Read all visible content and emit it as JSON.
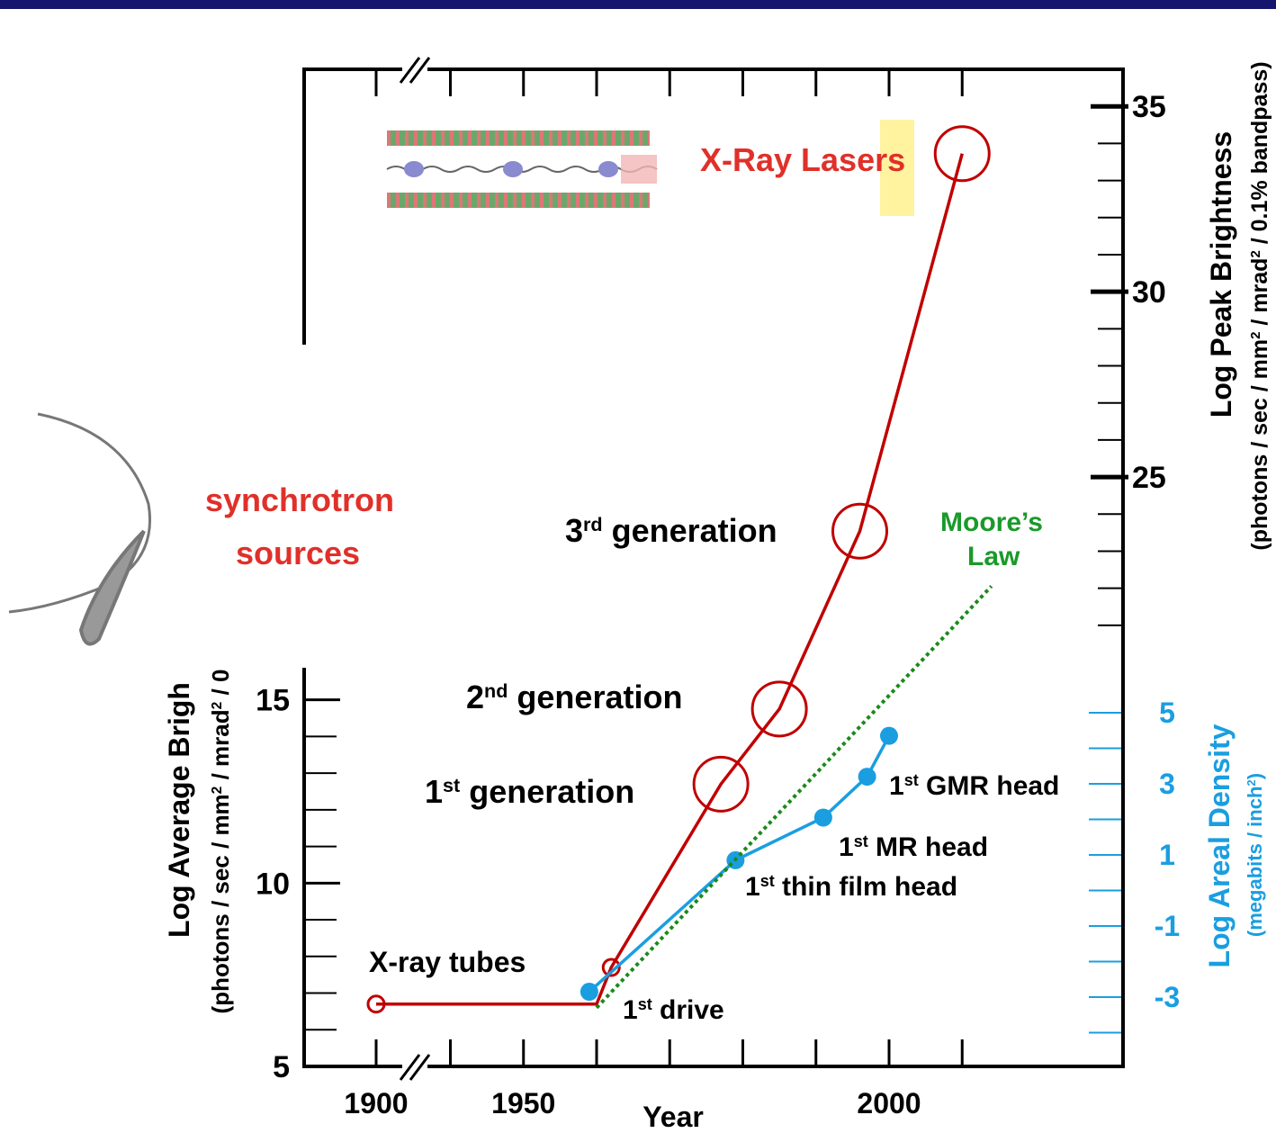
{
  "chart_data": {
    "type": "line",
    "x_label": "Year",
    "xlim": [
      1920,
      2032
    ],
    "xticks": [
      1900,
      1950,
      2000
    ],
    "xminorticks": [
      1940,
      1960,
      1970,
      1980,
      1990,
      2010
    ],
    "y_label": "Log Average Brigh",
    "y_sublabel": [
      "(photons / sec / mm",
      "2",
      " / mrad",
      "2",
      " / 0"
    ],
    "ylim": [
      5,
      32.2
    ],
    "yticks": [
      5,
      10,
      15
    ],
    "yminorticks": [
      6,
      7,
      8,
      9,
      11,
      12,
      13,
      14
    ],
    "y2_label": "Log Peak Brightness",
    "y2_sublabel": [
      "(photons / sec / mm",
      "2",
      " / mrad",
      "2",
      " / 0.1% bandpass)"
    ],
    "y2lim": [
      9.1,
      36
    ],
    "y2ticks": [
      25,
      30,
      35
    ],
    "y2minorticks": [
      21,
      22,
      23,
      24,
      26,
      27,
      28,
      29,
      31,
      32,
      33,
      34
    ],
    "y3_label": "Log Areal Density",
    "y3_sublabel": [
      "(megabits / inch",
      "2",
      ")"
    ],
    "y3_color": "#1a9ee0",
    "y3lim": [
      -4.95,
      23.1
    ],
    "y3ticks": [
      -3,
      -1,
      1,
      3,
      5
    ],
    "y3minorticks": [
      -4,
      -2,
      0,
      2,
      4
    ],
    "series": [
      {
        "color": "#c00000",
        "axis": "y",
        "x": [
          1900,
          1960,
          1962,
          1977,
          1985,
          1996,
          2010
        ],
        "values": [
          6.7,
          6.7,
          7.7,
          12.7,
          14.75,
          19.6,
          29.9
        ],
        "markers": [
          "small-open",
          null,
          "small-open",
          "big-open",
          "big-open",
          "big-open",
          "big-open"
        ]
      },
      {
        "color": "#1a9ee0",
        "axis": "y3",
        "x": [
          1959,
          1979,
          1991,
          1997,
          2000
        ],
        "values": [
          -2.85,
          0.85,
          2.05,
          3.2,
          4.35
        ],
        "markers": [
          "dot",
          "dot",
          "dot",
          "dot",
          "dot"
        ]
      },
      {
        "color": "#1a8a1a",
        "axis": "y",
        "dashed": true,
        "x": [
          1960,
          2014
        ],
        "values": [
          6.6,
          18.1
        ]
      }
    ],
    "annotations": [
      {
        "text": "X-ray tubes",
        "color": "#000000"
      },
      {
        "text": [
          "1",
          "st",
          " drive"
        ],
        "color": "#000000"
      },
      {
        "text": [
          "1",
          "st",
          " thin film head"
        ],
        "color": "#000000"
      },
      {
        "text": [
          "1",
          "st",
          " MR head"
        ],
        "color": "#000000"
      },
      {
        "text": [
          "1",
          "st",
          " GMR head"
        ],
        "color": "#000000"
      },
      {
        "text": [
          "1",
          "st",
          " generation"
        ],
        "color": "#000000"
      },
      {
        "text": [
          "2",
          "nd",
          " generation"
        ],
        "color": "#000000"
      },
      {
        "text": [
          "3",
          "rd",
          " generation"
        ],
        "color": "#000000"
      },
      {
        "text": "X-Ray Lasers",
        "color": "#e0302a"
      },
      {
        "text": "synchrotron",
        "color": "#e0302a"
      },
      {
        "text": "sources",
        "color": "#e0302a"
      },
      {
        "text": "Moore’s",
        "color": "#1a9a2a"
      },
      {
        "text": "Law",
        "color": "#1a9a2a"
      }
    ]
  }
}
